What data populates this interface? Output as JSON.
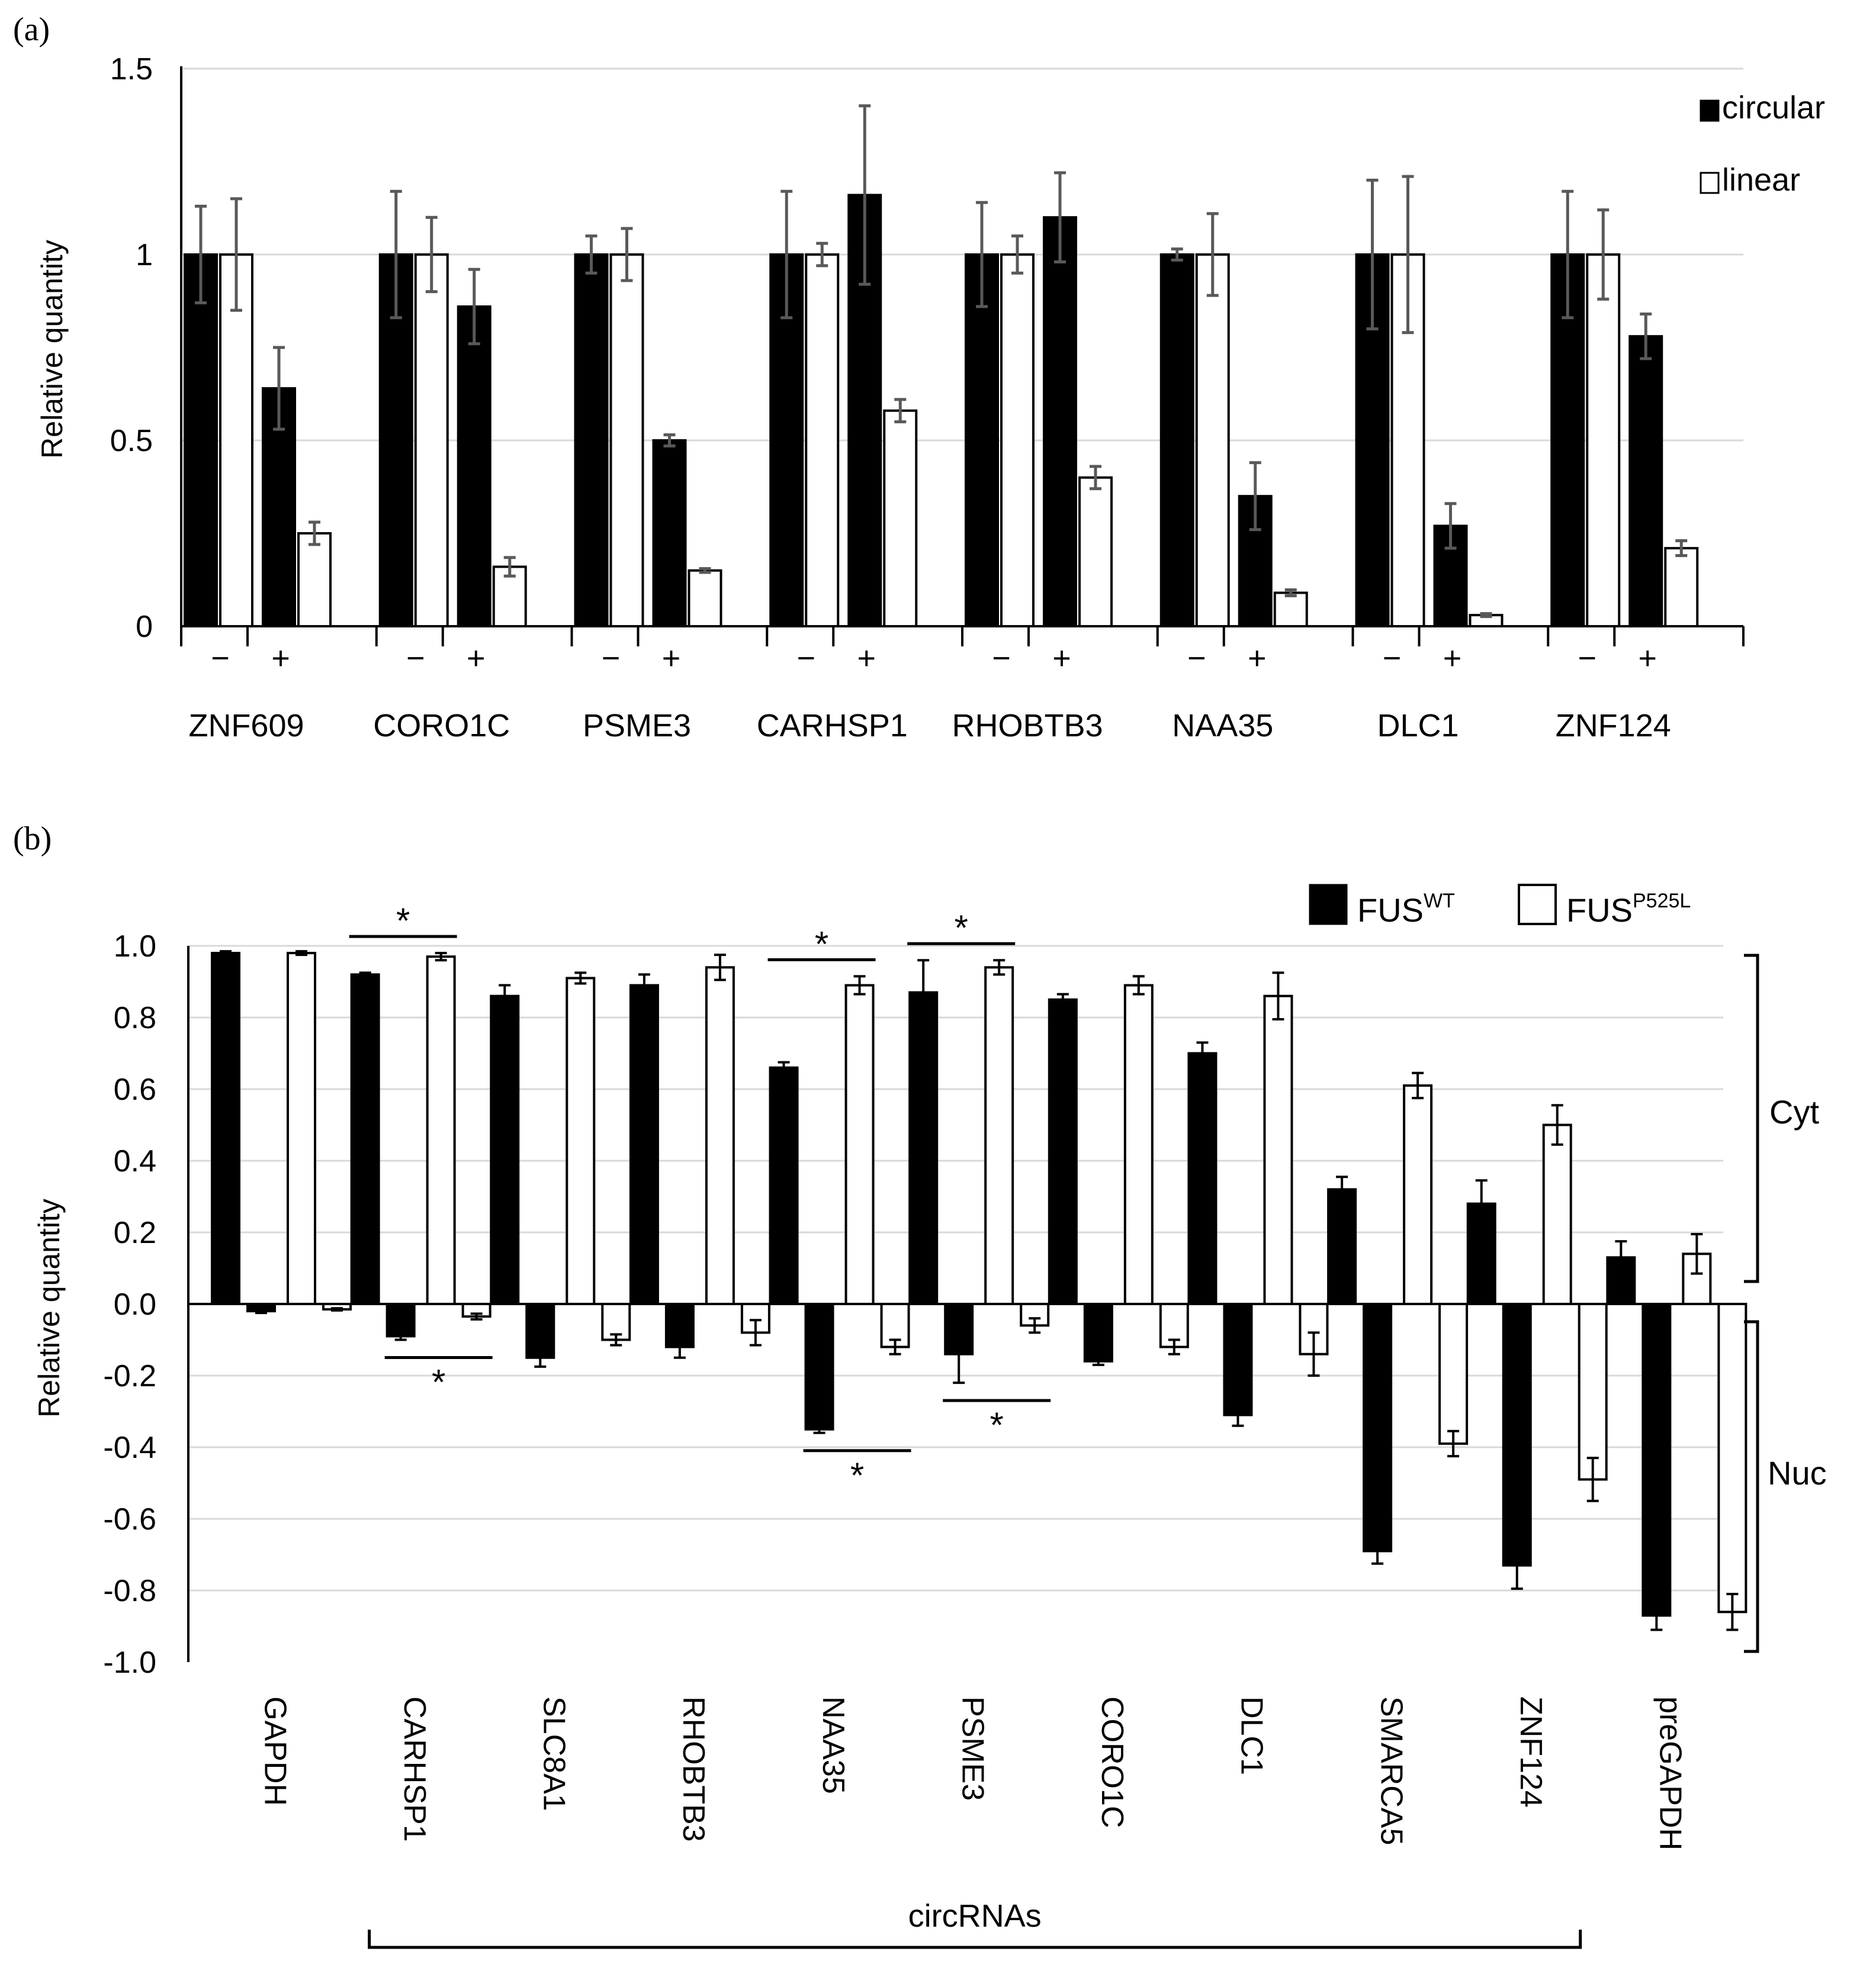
{
  "colors": {
    "circular": "#000000",
    "linear": "#ffffff",
    "fus_wt": "#000000",
    "fus_p525l": "#ffffff",
    "grid": "#d9d9d9",
    "axis": "#000000",
    "errorbar_a": "#595959",
    "errorbar_b": "#000000"
  },
  "chart_data": [
    {
      "panel_label": "(a)",
      "type": "bar",
      "title": "",
      "xlabel": "",
      "ylabel": "Relative quantity",
      "ylim": [
        0,
        1.5
      ],
      "y_ticks": [
        "0",
        "0.5",
        "1",
        "1.5"
      ],
      "y_tick_values": [
        0,
        0.5,
        1,
        1.5
      ],
      "grid": true,
      "legend_position": "top-right",
      "group_names": [
        "ZNF609",
        "CORO1C",
        "PSME3",
        "CARHSP1",
        "RHOBTB3",
        "NAA35",
        "DLC1",
        "ZNF124"
      ],
      "conditions": [
        "−",
        "+"
      ],
      "series": [
        {
          "name": "circular",
          "minus": [
            1.0,
            1.0,
            1.0,
            1.0,
            1.0,
            1.0,
            1.0,
            1.0
          ],
          "minus_err": [
            0.13,
            0.17,
            0.05,
            0.17,
            0.14,
            0.015,
            0.2,
            0.17
          ],
          "plus": [
            0.64,
            0.86,
            0.5,
            1.16,
            1.1,
            0.35,
            0.27,
            0.78
          ],
          "plus_err": [
            0.11,
            0.1,
            0.015,
            0.24,
            0.12,
            0.09,
            0.06,
            0.06
          ]
        },
        {
          "name": "linear",
          "minus": [
            1.0,
            1.0,
            1.0,
            1.0,
            1.0,
            1.0,
            1.0,
            1.0
          ],
          "minus_err": [
            0.15,
            0.1,
            0.07,
            0.03,
            0.05,
            0.11,
            0.21,
            0.12
          ],
          "plus": [
            0.25,
            0.16,
            0.15,
            0.58,
            0.4,
            0.09,
            0.03,
            0.21
          ],
          "plus_err": [
            0.03,
            0.025,
            0.005,
            0.03,
            0.03,
            0.008,
            0.004,
            0.02
          ]
        }
      ]
    },
    {
      "panel_label": "(b)",
      "type": "bar",
      "title": "",
      "xlabel": "circRNAs",
      "ylabel": "Relative quantity",
      "ylim": [
        -1.0,
        1.0
      ],
      "y_ticks": [
        "1.0",
        "0.8",
        "0.6",
        "0.4",
        "0.2",
        "0.0",
        "-0.2",
        "-0.4",
        "-0.6",
        "-0.8",
        "-1.0"
      ],
      "y_tick_values": [
        1.0,
        0.8,
        0.6,
        0.4,
        0.2,
        0.0,
        -0.2,
        -0.4,
        -0.6,
        -0.8,
        -1.0
      ],
      "grid": true,
      "legend_position": "top-right",
      "categories": [
        "GAPDH",
        "CARHSP1",
        "SLC8A1",
        "RHOBTB3",
        "NAA35",
        "PSME3",
        "CORO1C",
        "DLC1",
        "SMARCA5",
        "ZNF124",
        "preGAPDH"
      ],
      "circrna_bracket": {
        "first": 1,
        "last": 9,
        "label": "circRNAs"
      },
      "side_brackets": [
        "Cyt",
        "Nuc"
      ],
      "series": [
        {
          "name": "FUS",
          "superscript": "WT",
          "cyt": [
            0.98,
            0.92,
            0.86,
            0.89,
            0.66,
            0.87,
            0.85,
            0.7,
            0.32,
            0.28,
            0.13
          ],
          "cyt_err": [
            0.005,
            0.005,
            0.03,
            0.03,
            0.015,
            0.09,
            0.015,
            0.03,
            0.035,
            0.065,
            0.045
          ],
          "nuc": [
            -0.02,
            -0.09,
            -0.15,
            -0.12,
            -0.35,
            -0.14,
            -0.16,
            -0.31,
            -0.69,
            -0.73,
            -0.87
          ],
          "nuc_err": [
            0.005,
            0.01,
            0.025,
            0.03,
            0.01,
            0.08,
            0.01,
            0.03,
            0.035,
            0.065,
            0.04
          ]
        },
        {
          "name": "FUS",
          "superscript": "P525L",
          "cyt": [
            0.98,
            0.97,
            0.91,
            0.94,
            0.89,
            0.94,
            0.89,
            0.86,
            0.61,
            0.5,
            0.14
          ],
          "cyt_err": [
            0.005,
            0.01,
            0.015,
            0.035,
            0.025,
            0.02,
            0.025,
            0.065,
            0.035,
            0.055,
            0.055
          ],
          "nuc": [
            -0.015,
            -0.035,
            -0.1,
            -0.08,
            -0.12,
            -0.06,
            -0.12,
            -0.14,
            -0.39,
            -0.49,
            -0.86
          ],
          "nuc_err": [
            0.003,
            0.008,
            0.015,
            0.035,
            0.02,
            0.02,
            0.02,
            0.06,
            0.035,
            0.06,
            0.05
          ]
        }
      ],
      "significance": [
        {
          "category": "CARHSP1",
          "side": "cyt",
          "label": "*"
        },
        {
          "category": "CARHSP1",
          "side": "nuc",
          "label": "*"
        },
        {
          "category": "NAA35",
          "side": "cyt",
          "label": "*"
        },
        {
          "category": "NAA35",
          "side": "nuc",
          "label": "*"
        },
        {
          "category": "PSME3",
          "side": "cyt",
          "label": "*"
        },
        {
          "category": "PSME3",
          "side": "nuc",
          "label": "*"
        }
      ]
    }
  ]
}
